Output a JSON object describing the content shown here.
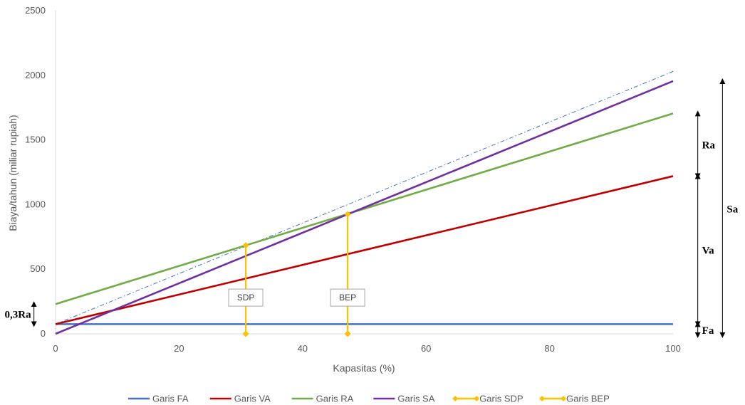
{
  "chart_data": {
    "type": "line",
    "xlabel": "Kapasitas (%)",
    "ylabel": "Biaya/tahun (miliar rupiah)",
    "xlim": [
      0,
      100
    ],
    "ylim": [
      0,
      2500
    ],
    "xticks": [
      "0",
      "20",
      "40",
      "60",
      "80",
      "100"
    ],
    "yticks": [
      "0",
      "500",
      "1000",
      "1500",
      "2000",
      "2500"
    ],
    "grid": false,
    "legend_position": "bottom",
    "series": [
      {
        "name": "Garis FA",
        "color": "#4472C4",
        "x": [
          0,
          100
        ],
        "y": [
          75,
          75
        ]
      },
      {
        "name": "Garis VA",
        "color": "#C00000",
        "x": [
          0,
          100
        ],
        "y": [
          75,
          1220
        ]
      },
      {
        "name": "Garis RA",
        "color": "#70AD47",
        "x": [
          0,
          100
        ],
        "y": [
          230,
          1705
        ]
      },
      {
        "name": "Garis SA",
        "color": "#7030A0",
        "x": [
          0,
          100
        ],
        "y": [
          0,
          1955
        ]
      },
      {
        "name": "Garis SDP",
        "color": "#FFC000",
        "x": [
          30.8,
          30.8
        ],
        "y": [
          0,
          685
        ]
      },
      {
        "name": "Garis BEP",
        "color": "#FFC000",
        "x": [
          47.3,
          47.3
        ],
        "y": [
          0,
          925
        ]
      }
    ],
    "reference_line": {
      "color": "#4472C4",
      "style": "dash-dot",
      "x": [
        0,
        100
      ],
      "y": [
        75,
        2030
      ]
    },
    "annotations": [
      {
        "label": "SDP",
        "x": 30.8,
        "y": 280
      },
      {
        "label": "BEP",
        "x": 47.3,
        "y": 280
      }
    ],
    "brackets": [
      {
        "label": "Ra",
        "x": 104,
        "y0": 1220,
        "y1": 1705
      },
      {
        "label": "Va",
        "x": 104,
        "y0": 75,
        "y1": 1220
      },
      {
        "label": "Fa",
        "x": 104,
        "y0": -10,
        "y1": 75
      },
      {
        "label": "Sa",
        "x": 108,
        "y0": -10,
        "y1": 1955
      },
      {
        "label": "0,3Ra",
        "x": -3.5,
        "y0": 75,
        "y1": 230
      }
    ]
  }
}
